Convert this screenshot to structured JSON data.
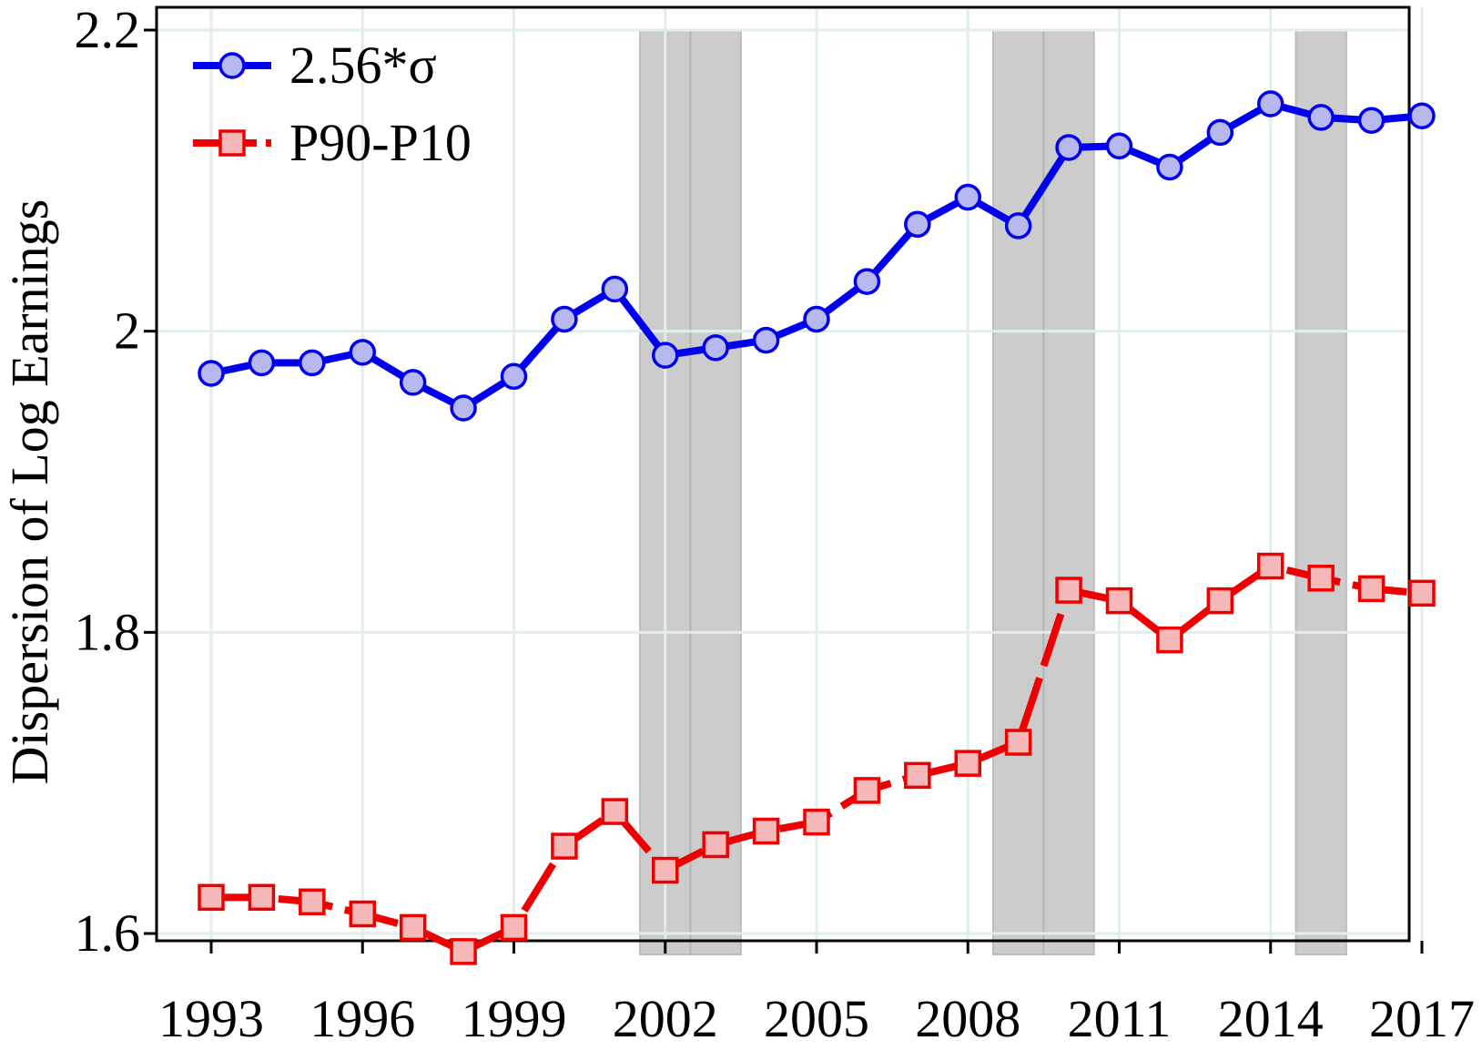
{
  "chart_data": {
    "type": "line",
    "title": "",
    "xlabel": "",
    "ylabel": "Dispersion of Log Earnings",
    "xlim": [
      1992,
      2017.2
    ],
    "ylim": [
      1.58,
      2.2
    ],
    "xticks": [
      1993,
      1996,
      1999,
      2002,
      2005,
      2008,
      2011,
      2014,
      2017
    ],
    "yticks": [
      1.6,
      1.8,
      2,
      2.2
    ],
    "ytick_labels": [
      "1.6",
      "1.8",
      "2",
      "2.2"
    ],
    "grid": true,
    "legend_position": "top-left",
    "recession_bands": [
      [
        2001.5,
        2003.5
      ],
      [
        2008.5,
        2010.5
      ],
      [
        2014.5,
        2015.5
      ]
    ],
    "recession_dividers": [
      2002.5,
      2009.5
    ],
    "x": [
      1993,
      1994,
      1995,
      1996,
      1997,
      1998,
      1999,
      2000,
      2001,
      2002,
      2003,
      2004,
      2005,
      2006,
      2007,
      2008,
      2009,
      2010,
      2011,
      2012,
      2013,
      2014,
      2015,
      2016,
      2017
    ],
    "series": [
      {
        "name": "2.56*σ",
        "color": "#0000ee",
        "marker_fill": "#b8b8f0",
        "marker": "circle",
        "linestyle": "solid",
        "values": [
          1.972,
          1.979,
          1.979,
          1.986,
          1.966,
          1.949,
          1.97,
          2.008,
          2.028,
          1.984,
          1.989,
          1.994,
          2.008,
          2.033,
          2.071,
          2.089,
          2.07,
          2.122,
          2.123,
          2.109,
          2.132,
          2.151,
          2.142,
          2.14,
          2.143
        ]
      },
      {
        "name": "P90-P10",
        "color": "#ee0000",
        "marker_fill": "#f5b8b8",
        "marker": "square",
        "linestyle": "longdash",
        "values": [
          1.624,
          1.624,
          1.621,
          1.613,
          1.604,
          1.588,
          1.604,
          1.658,
          1.681,
          1.642,
          1.659,
          1.668,
          1.674,
          1.695,
          1.705,
          1.713,
          1.727,
          1.828,
          1.821,
          1.795,
          1.821,
          1.844,
          1.836,
          1.829,
          1.826
        ]
      }
    ]
  }
}
